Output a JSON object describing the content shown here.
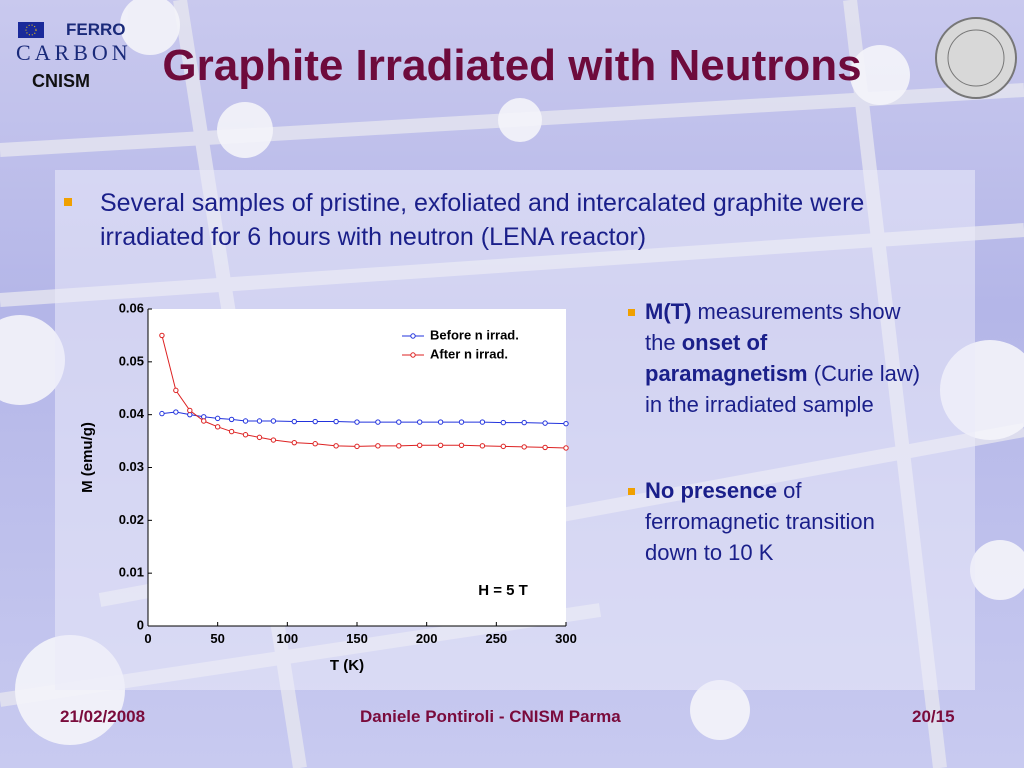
{
  "logo": {
    "ferro": "FERRO",
    "carbon": "CARBON",
    "cnism": "CNISM"
  },
  "header": {
    "title": "Graphite Irradiated with Neutrons"
  },
  "intro": "Several samples of pristine, exfoliated and intercalated graphite were irradiated for 6 hours with neutron (LENA reactor)",
  "bullets": [
    [
      {
        "text": "M(T)",
        "bold": true
      },
      {
        "text": " measurements show the ",
        "bold": false
      },
      {
        "text": "onset of paramagnetism",
        "bold": true
      },
      {
        "text": " (Curie law) in the irradiated sample",
        "bold": false
      }
    ],
    [
      {
        "text": "No presence",
        "bold": true
      },
      {
        "text": " of ferromagnetic transition down to 10 K",
        "bold": false
      }
    ]
  ],
  "chart_data": {
    "type": "line",
    "x_label": "T (K)",
    "y_label": "M (emu/g)",
    "annotation": "H = 5 T",
    "x": [
      10,
      20,
      30,
      40,
      50,
      60,
      70,
      80,
      90,
      105,
      120,
      135,
      150,
      165,
      180,
      195,
      210,
      225,
      240,
      255,
      270,
      285,
      300
    ],
    "series": [
      {
        "name": "Before n irrad.",
        "color": "#2233dd",
        "values": [
          0.0402,
          0.0405,
          0.04,
          0.0396,
          0.0393,
          0.0391,
          0.0388,
          0.0388,
          0.0388,
          0.0387,
          0.0387,
          0.0387,
          0.0386,
          0.0386,
          0.0386,
          0.0386,
          0.0386,
          0.0386,
          0.0386,
          0.0385,
          0.0385,
          0.0384,
          0.0383
        ]
      },
      {
        "name": "After n irrad.",
        "color": "#dd2222",
        "values": [
          0.055,
          0.0446,
          0.0408,
          0.0388,
          0.0377,
          0.0368,
          0.0362,
          0.0357,
          0.0352,
          0.0347,
          0.0345,
          0.0341,
          0.034,
          0.0341,
          0.0341,
          0.0342,
          0.0342,
          0.0342,
          0.0341,
          0.034,
          0.0339,
          0.0338,
          0.0337
        ]
      }
    ],
    "xlim": [
      0,
      300
    ],
    "ylim": [
      0,
      0.06
    ],
    "xticks": [
      0,
      50,
      100,
      150,
      200,
      250,
      300
    ],
    "yticks": [
      0,
      0.01,
      0.02,
      0.03,
      0.04,
      0.05,
      0.06
    ]
  },
  "footer": {
    "date": "21/02/2008",
    "author": "Daniele Pontiroli - CNISM Parma",
    "page": "20/15"
  }
}
